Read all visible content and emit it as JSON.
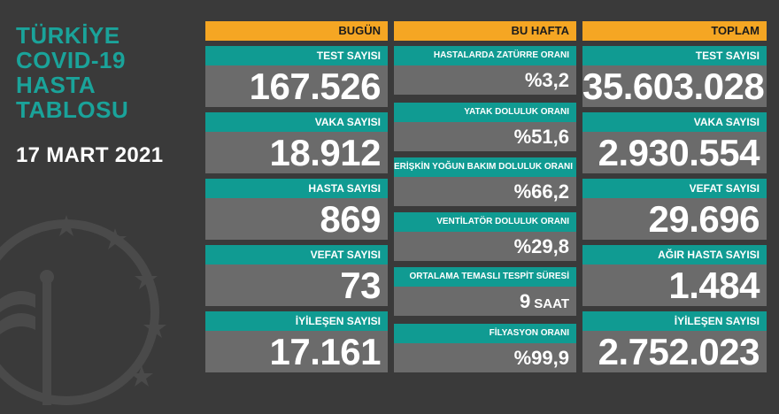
{
  "title": {
    "lines": [
      "TÜRKİYE",
      "COVID-19",
      "HASTA",
      "TABLOSU"
    ],
    "color": "#1aa39a"
  },
  "date": "17 MART 2021",
  "colors": {
    "background": "#3a3a3a",
    "header": "#f5a623",
    "label": "#109b92",
    "value_box": "#6b6b6b"
  },
  "today": {
    "header": "BUGÜN",
    "items": [
      {
        "label": "TEST SAYISI",
        "value": "167.526"
      },
      {
        "label": "VAKA SAYISI",
        "value": "18.912"
      },
      {
        "label": "HASTA SAYISI",
        "value": "869"
      },
      {
        "label": "VEFAT SAYISI",
        "value": "73"
      },
      {
        "label": "İYİLEŞEN SAYISI",
        "value": "17.161"
      }
    ]
  },
  "week": {
    "header": "BU HAFTA",
    "items": [
      {
        "label": "HASTALARDA ZATÜRRE ORANI",
        "value": "%3,2",
        "unit": ""
      },
      {
        "label": "YATAK DOLULUK ORANI",
        "value": "%51,6",
        "unit": ""
      },
      {
        "label": "ERİŞKİN YOĞUN BAKIM DOLULUK ORANI",
        "value": "%66,2",
        "unit": ""
      },
      {
        "label": "VENTİLATÖR DOLULUK ORANI",
        "value": "%29,8",
        "unit": ""
      },
      {
        "label": "ORTALAMA TEMASLI TESPİT SÜRESİ",
        "value": "9",
        "unit": "SAAT"
      },
      {
        "label": "FİLYASYON ORANI",
        "value": "%99,9",
        "unit": ""
      }
    ]
  },
  "total": {
    "header": "TOPLAM",
    "items": [
      {
        "label": "TEST SAYISI",
        "value": "35.603.028"
      },
      {
        "label": "VAKA SAYISI",
        "value": "2.930.554"
      },
      {
        "label": "VEFAT SAYISI",
        "value": "29.696"
      },
      {
        "label": "AĞIR HASTA SAYISI",
        "value": "1.484"
      },
      {
        "label": "İYİLEŞEN SAYISI",
        "value": "2.752.023"
      }
    ]
  },
  "emblem_icon": "ministry-of-health-emblem-icon"
}
